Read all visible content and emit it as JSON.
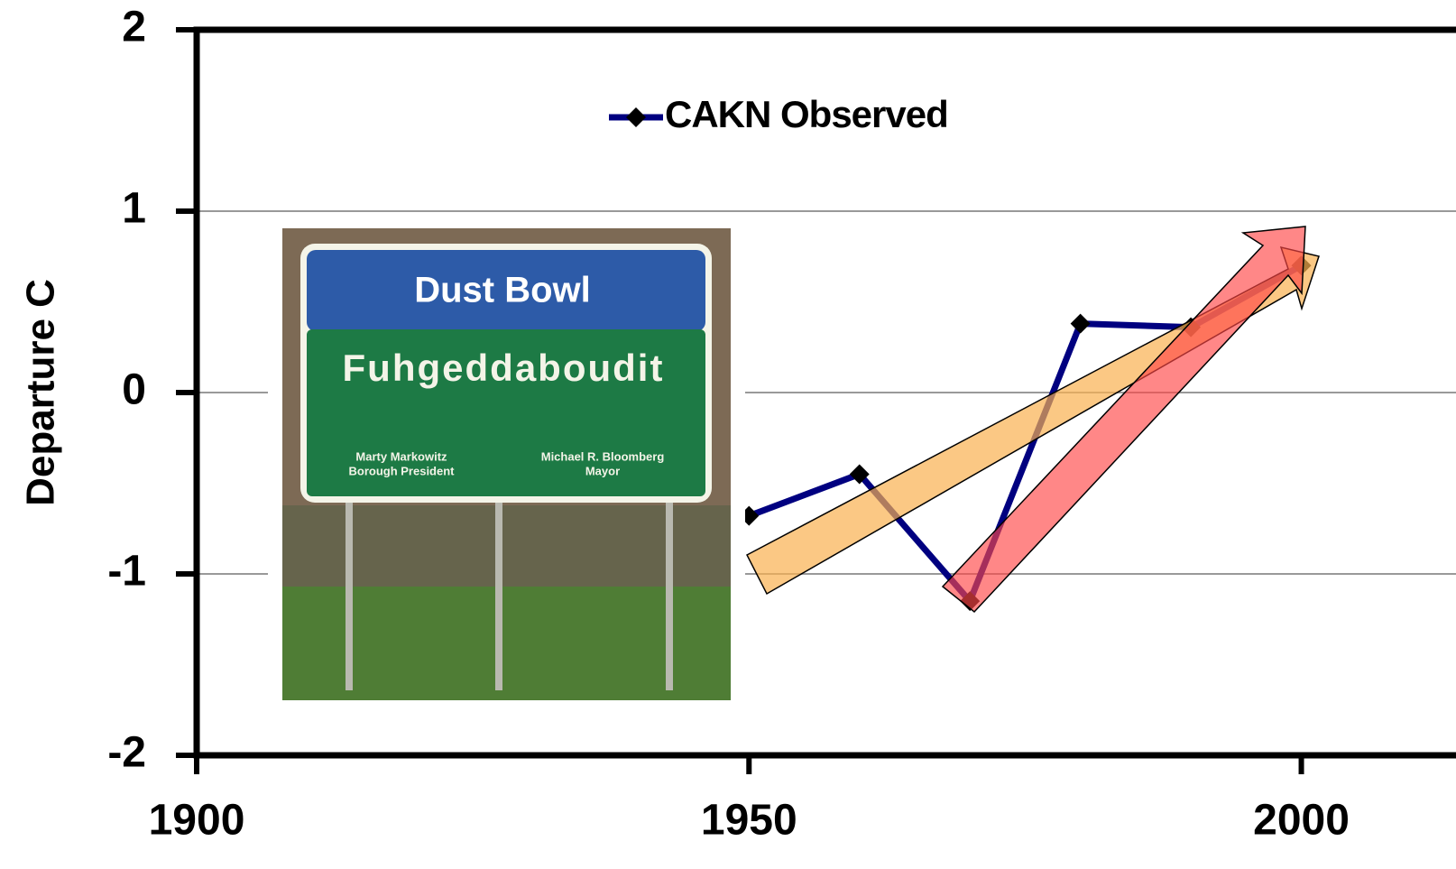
{
  "chart_data": {
    "type": "line",
    "ylabel": "Departure C",
    "x": [
      1950,
      1960,
      1970,
      1980,
      1990,
      2000
    ],
    "series": [
      {
        "name": "CAKN Observed",
        "color": "#000080",
        "values": [
          -0.68,
          -0.45,
          -1.15,
          0.38,
          0.36,
          0.7
        ]
      }
    ],
    "xlim": [
      1900,
      2010
    ],
    "xticks": [
      1900,
      1950,
      2000
    ],
    "ylim": [
      -2,
      2
    ],
    "yticks": [
      -2,
      -1,
      0,
      1,
      2
    ],
    "grid": true,
    "legend": "top",
    "inset": {
      "title": "Dust Bowl",
      "subtitle": "Fuhgeddaboudit",
      "left_name": "Marty Markowitz",
      "left_role": "Borough President",
      "right_name": "Michael R. Bloomberg",
      "right_role": "Mayor"
    }
  }
}
